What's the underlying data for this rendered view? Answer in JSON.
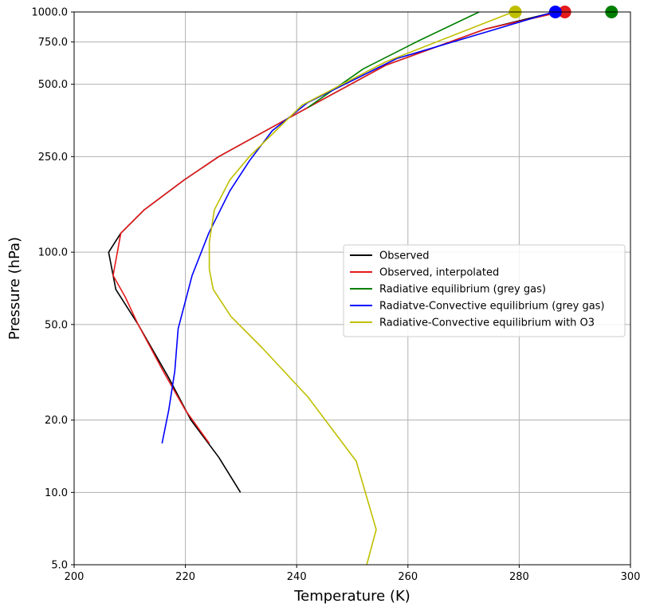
{
  "chart_data": {
    "type": "line",
    "xlabel": "Temperature (K)",
    "ylabel": "Pressure (hPa)",
    "xlim": [
      200,
      300
    ],
    "ylim_log": [
      1000,
      5
    ],
    "y_scale": "log-inverted",
    "x_ticks": [
      200,
      220,
      240,
      260,
      280,
      300
    ],
    "x_tick_labels": [
      "200",
      "220",
      "240",
      "260",
      "280",
      "300"
    ],
    "y_ticks": [
      5,
      10,
      20,
      50,
      100,
      250,
      500,
      750,
      1000
    ],
    "y_tick_labels": [
      "5.0",
      "10.0",
      "20.0",
      "50.0",
      "100.0",
      "250.0",
      "500.0",
      "750.0",
      "1000.0"
    ],
    "grid": true,
    "legend_position": "center-right",
    "series": [
      {
        "name": "Observed",
        "color": "#000000",
        "points": [
          [
            229.9,
            10
          ],
          [
            226,
            14
          ],
          [
            221,
            20
          ],
          [
            217,
            30
          ],
          [
            211.5,
            50
          ],
          [
            207.5,
            70
          ],
          [
            206.2,
            100
          ],
          [
            208.4,
            120
          ],
          [
            212.6,
            150
          ],
          [
            219.8,
            200
          ],
          [
            226,
            250
          ],
          [
            242,
            400
          ],
          [
            256,
            600
          ],
          [
            274,
            850
          ],
          [
            286.5,
            1000
          ]
        ]
      },
      {
        "name": "Observed, interpolated",
        "color": "#e41a1c",
        "points": [
          [
            224.3,
            16
          ],
          [
            220,
            22
          ],
          [
            216,
            32
          ],
          [
            211.5,
            50
          ],
          [
            209.2,
            65
          ],
          [
            207,
            80
          ],
          [
            208.4,
            120
          ],
          [
            212.6,
            150
          ],
          [
            219.8,
            200
          ],
          [
            226,
            250
          ],
          [
            242,
            400
          ],
          [
            256,
            600
          ],
          [
            274,
            850
          ],
          [
            287.5,
            1000
          ]
        ],
        "surface_marker": [
          288.2,
          1000
        ]
      },
      {
        "name": "Radiative equilibrium (grey gas)",
        "color": "#008000",
        "points": [
          [
            242,
            400
          ],
          [
            252,
            580
          ],
          [
            262,
            760
          ],
          [
            272.8,
            1000
          ]
        ],
        "surface_marker": [
          296.6,
          1000
        ]
      },
      {
        "name": "Radiatve-Convective equilibrium (grey gas)",
        "color": "#0000ff",
        "points": [
          [
            215.8,
            16
          ],
          [
            217,
            22
          ],
          [
            218.1,
            32
          ],
          [
            218.7,
            48
          ],
          [
            221.2,
            80
          ],
          [
            224.2,
            120
          ],
          [
            228,
            180
          ],
          [
            231.5,
            240
          ],
          [
            235.6,
            320
          ],
          [
            242,
            420
          ],
          [
            258,
            640
          ],
          [
            286.2,
            1000
          ]
        ],
        "surface_marker": [
          286.5,
          1000
        ]
      },
      {
        "name": "Radiative-Convective equilibrium with O3",
        "color": "#bfbf00",
        "points": [
          [
            252.6,
            5
          ],
          [
            254.3,
            7
          ],
          [
            250.7,
            13.5
          ],
          [
            242,
            25
          ],
          [
            233.8,
            40
          ],
          [
            228.2,
            54
          ],
          [
            225,
            70
          ],
          [
            224.3,
            85
          ],
          [
            224.3,
            110
          ],
          [
            225.2,
            150
          ],
          [
            228,
            200
          ],
          [
            231.5,
            250
          ],
          [
            236.8,
            330
          ],
          [
            241,
            410
          ],
          [
            256,
            620
          ],
          [
            278.9,
            1000
          ]
        ],
        "surface_marker": [
          279.3,
          1000
        ]
      }
    ]
  }
}
